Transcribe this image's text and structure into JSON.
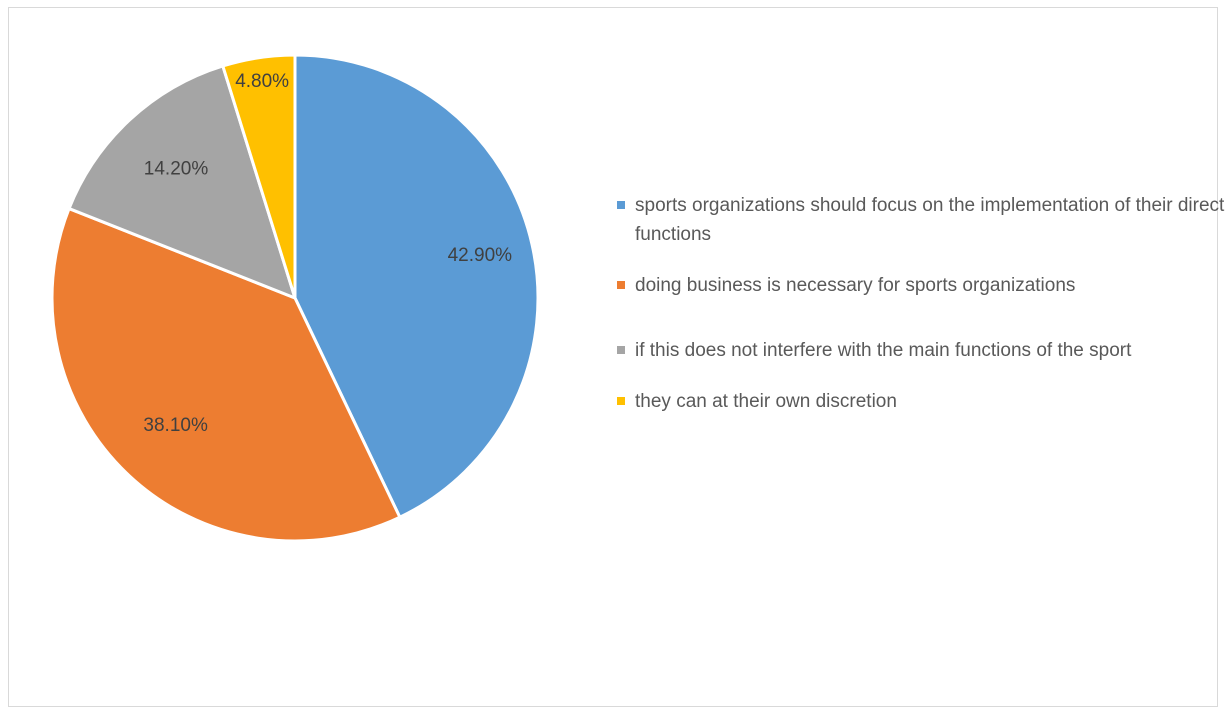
{
  "chart_data": {
    "type": "pie",
    "title": "",
    "slices": [
      {
        "label": "sports organizations should focus on the implementation of their direct functions",
        "value": 42.9,
        "display": "42.90%",
        "color": "#5b9bd5"
      },
      {
        "label": "doing business is necessary for sports organizations",
        "value": 38.1,
        "display": "38.10%",
        "color": "#ed7d31"
      },
      {
        "label": "if this does not interfere with the main functions of the sport",
        "value": 14.2,
        "display": "14.20%",
        "color": "#a5a5a5"
      },
      {
        "label": "they can at their own discretion",
        "value": 4.8,
        "display": "4.80%",
        "color": "#ffc000"
      }
    ],
    "start_angle": "12 o'clock",
    "direction": "clockwise",
    "legend_position": "right"
  }
}
